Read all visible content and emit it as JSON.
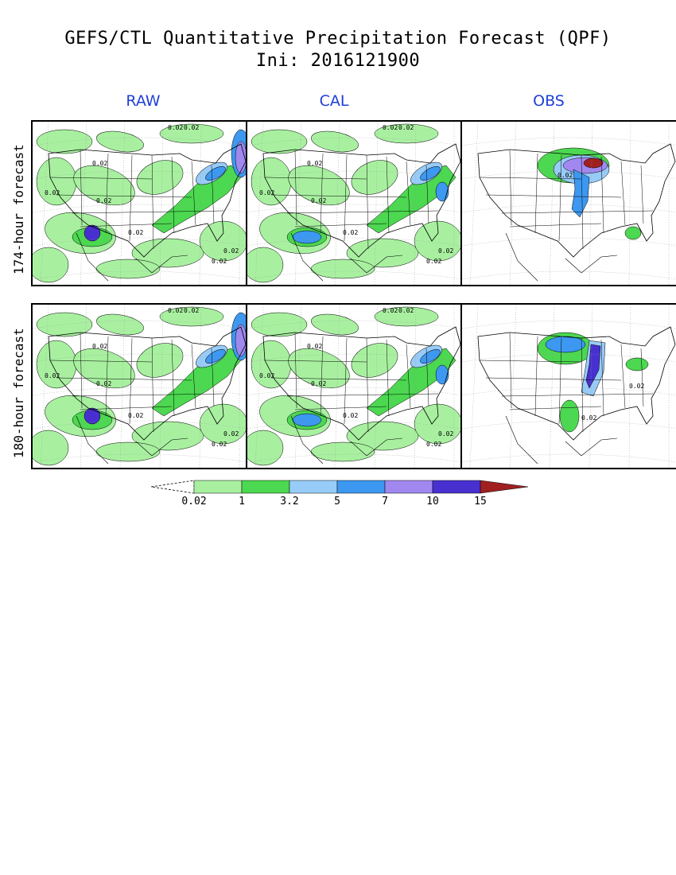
{
  "title": "GEFS/CTL Quantitative Precipitation Forecast (QPF)",
  "subtitle": "Ini: 2016121900",
  "columns": [
    "RAW",
    "CAL",
    "OBS"
  ],
  "rows": [
    "174-hour forecast",
    "180-hour forecast"
  ],
  "contour_label": "0.02",
  "colorbar": {
    "levels": [
      "0.02",
      "1",
      "3.2",
      "5",
      "7",
      "10",
      "15"
    ],
    "colors": [
      "#a8f0a0",
      "#4cd850",
      "#98ccf8",
      "#3c98f0",
      "#a088f0",
      "#4830d0",
      "#a02020"
    ]
  }
}
